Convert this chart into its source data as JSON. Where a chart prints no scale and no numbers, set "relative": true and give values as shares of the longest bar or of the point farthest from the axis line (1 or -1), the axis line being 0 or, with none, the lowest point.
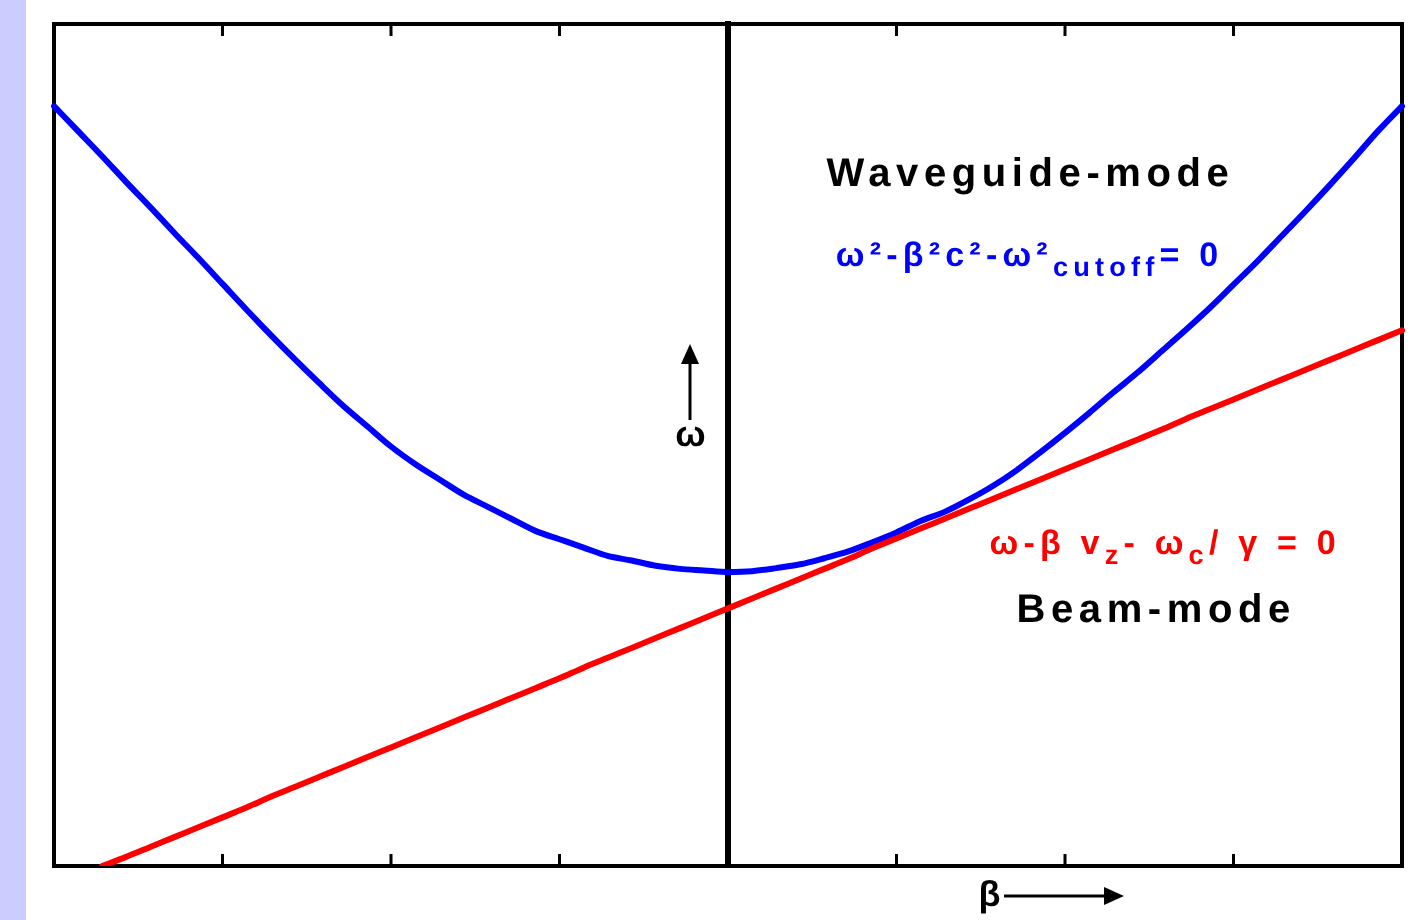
{
  "chart_data": {
    "type": "line",
    "relative": true,
    "categories": [
      null,
      null,
      null,
      null,
      null,
      null,
      null,
      null,
      null,
      null,
      null,
      null,
      null,
      null,
      null,
      null,
      null,
      null,
      null,
      null,
      null,
      null,
      null,
      null,
      null,
      null,
      null,
      null,
      null,
      null,
      null,
      null,
      null,
      null,
      null,
      null,
      null,
      null,
      null,
      null,
      null,
      null,
      null,
      null,
      null,
      null,
      null,
      null,
      null,
      null,
      null,
      null,
      null,
      null,
      null,
      null,
      null
    ],
    "series": [
      {
        "name": "ω²-β²c²-ω²$_{cutoff}$= 0",
        "color": "#0000ff",
        "values": [
          1.0,
          0.967,
          0.934,
          0.9,
          0.867,
          0.833,
          0.8,
          0.766,
          0.732,
          0.699,
          0.667,
          0.636,
          0.606,
          0.579,
          0.552,
          0.529,
          0.509,
          0.489,
          0.473,
          0.457,
          0.441,
          0.43,
          0.419,
          0.408,
          0.402,
          0.395,
          0.391,
          0.389,
          0.387,
          0.388,
          0.392,
          0.397,
          0.405,
          0.414,
          0.426,
          0.439,
          0.454,
          0.466,
          0.482,
          0.5,
          0.521,
          0.545,
          0.57,
          0.596,
          0.623,
          0.649,
          0.677,
          0.705,
          0.734,
          0.765,
          0.796,
          0.829,
          0.862,
          0.896,
          0.931,
          0.967,
          1.0
        ]
      },
      {
        "name": "ω-β v$_{z}$- ω$_{c}$/ γ = 0",
        "color": "#ff0000",
        "values": [
          null,
          null,
          0.0,
          0.012,
          0.025,
          0.038,
          0.051,
          0.064,
          0.077,
          0.091,
          0.104,
          0.117,
          0.13,
          0.143,
          0.156,
          0.169,
          0.182,
          0.195,
          0.208,
          0.221,
          0.234,
          0.247,
          0.261,
          0.274,
          0.287,
          0.3,
          0.313,
          0.326,
          0.339,
          0.352,
          0.365,
          0.378,
          0.391,
          0.404,
          0.418,
          0.431,
          0.444,
          0.457,
          0.47,
          0.483,
          0.496,
          0.509,
          0.522,
          0.535,
          0.548,
          0.561,
          0.574,
          0.588,
          0.601,
          0.614,
          0.627,
          0.64,
          0.653,
          0.666,
          0.679,
          0.692,
          0.705
        ]
      }
    ],
    "xlabel": "β",
    "ylabel": "ω",
    "annotations": [
      "Waveguide-mode",
      "Beam-mode"
    ]
  }
}
